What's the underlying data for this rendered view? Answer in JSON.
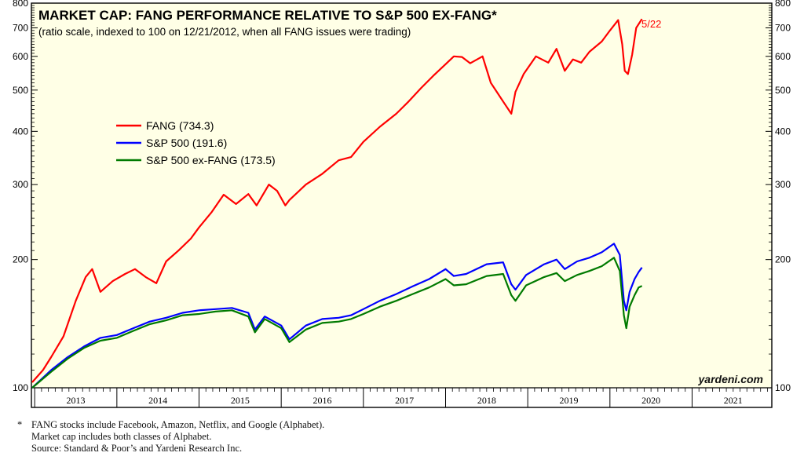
{
  "chart_data": {
    "type": "line",
    "title": "MARKET CAP: FANG PERFORMANCE RELATIVE TO S&P 500 EX-FANG*",
    "subtitle": "(ratio scale, indexed to 100 on 12/21/2012, when all FANG issues were trading)",
    "y_scale": "log",
    "ylim": [
      100,
      800
    ],
    "y_ticks": [
      100,
      200,
      300,
      400,
      500,
      600,
      700,
      800
    ],
    "xlim": [
      2012.96,
      2021.97
    ],
    "x_labels": [
      "2013",
      "2014",
      "2015",
      "2016",
      "2017",
      "2018",
      "2019",
      "2020",
      "2021"
    ],
    "grid": false,
    "legend_position": "center-left",
    "end_label": "5/22",
    "watermark": "yardeni.com",
    "series": [
      {
        "name": "FANG (734.3)",
        "color": "#ff0000",
        "x": [
          2012.97,
          2013.1,
          2013.2,
          2013.35,
          2013.5,
          2013.62,
          2013.7,
          2013.8,
          2013.95,
          2014.1,
          2014.22,
          2014.35,
          2014.48,
          2014.6,
          2014.75,
          2014.9,
          2015.0,
          2015.15,
          2015.3,
          2015.45,
          2015.6,
          2015.7,
          2015.85,
          2015.95,
          2016.05,
          2016.1,
          2016.3,
          2016.5,
          2016.7,
          2016.85,
          2017.0,
          2017.2,
          2017.4,
          2017.55,
          2017.7,
          2017.85,
          2018.0,
          2018.1,
          2018.2,
          2018.3,
          2018.45,
          2018.55,
          2018.7,
          2018.8,
          2018.85,
          2018.95,
          2019.1,
          2019.25,
          2019.35,
          2019.45,
          2019.55,
          2019.65,
          2019.75,
          2019.9,
          2020.0,
          2020.1,
          2020.15,
          2020.18,
          2020.22,
          2020.27,
          2020.32,
          2020.39
        ],
        "y": [
          103,
          110,
          118,
          132,
          160,
          182,
          190,
          168,
          178,
          185,
          190,
          182,
          176,
          198,
          210,
          224,
          238,
          258,
          284,
          270,
          285,
          268,
          300,
          290,
          268,
          276,
          300,
          318,
          342,
          348,
          378,
          410,
          440,
          470,
          505,
          540,
          575,
          600,
          598,
          578,
          600,
          520,
          470,
          440,
          495,
          545,
          600,
          580,
          625,
          555,
          590,
          580,
          615,
          650,
          690,
          730,
          640,
          555,
          545,
          605,
          700,
          734.3
        ]
      },
      {
        "name": "S&P 500 (191.6)",
        "color": "#0000ff",
        "x": [
          2012.97,
          2013.2,
          2013.4,
          2013.6,
          2013.8,
          2014.0,
          2014.2,
          2014.4,
          2014.6,
          2014.8,
          2015.0,
          2015.2,
          2015.4,
          2015.6,
          2015.68,
          2015.8,
          2016.0,
          2016.1,
          2016.3,
          2016.5,
          2016.7,
          2016.85,
          2017.0,
          2017.2,
          2017.4,
          2017.6,
          2017.8,
          2018.0,
          2018.1,
          2018.25,
          2018.5,
          2018.7,
          2018.8,
          2018.85,
          2018.98,
          2019.2,
          2019.35,
          2019.45,
          2019.6,
          2019.75,
          2019.9,
          2020.05,
          2020.12,
          2020.17,
          2020.2,
          2020.24,
          2020.3,
          2020.35,
          2020.39
        ],
        "y": [
          100,
          110,
          118,
          125,
          131,
          133,
          138,
          143,
          146,
          150,
          152,
          153,
          154,
          150,
          137,
          147,
          140,
          130,
          140,
          145,
          146,
          148,
          153,
          160,
          166,
          173,
          180,
          190,
          183,
          185,
          195,
          197,
          175,
          170,
          184,
          195,
          200,
          190,
          198,
          202,
          208,
          218,
          205,
          160,
          152,
          168,
          180,
          187,
          191.6
        ]
      },
      {
        "name": "S&P 500 ex-FANG (173.5)",
        "color": "#007a00",
        "x": [
          2012.97,
          2013.2,
          2013.4,
          2013.6,
          2013.8,
          2014.0,
          2014.2,
          2014.4,
          2014.6,
          2014.8,
          2015.0,
          2015.2,
          2015.4,
          2015.6,
          2015.68,
          2015.8,
          2016.0,
          2016.1,
          2016.3,
          2016.5,
          2016.7,
          2016.85,
          2017.0,
          2017.2,
          2017.4,
          2017.6,
          2017.8,
          2018.0,
          2018.1,
          2018.25,
          2018.5,
          2018.7,
          2018.8,
          2018.85,
          2018.98,
          2019.2,
          2019.35,
          2019.45,
          2019.6,
          2019.75,
          2019.9,
          2020.05,
          2020.12,
          2020.17,
          2020.2,
          2020.24,
          2020.3,
          2020.35,
          2020.39
        ],
        "y": [
          100,
          109,
          117,
          124,
          129,
          131,
          136,
          141,
          144,
          148,
          149,
          151,
          152,
          147,
          135,
          145,
          138,
          128,
          137,
          142,
          143,
          145,
          149,
          155,
          160,
          166,
          172,
          180,
          174,
          175,
          183,
          185,
          165,
          160,
          174,
          182,
          186,
          178,
          184,
          188,
          193,
          202,
          188,
          148,
          138,
          155,
          165,
          172,
          173.5
        ]
      }
    ]
  },
  "footnotes": {
    "marker": "*",
    "line1": "FANG stocks include Facebook, Amazon, Netflix, and Google (Alphabet).",
    "line2": "Market cap includes both classes of Alphabet.",
    "line3": "Source: Standard & Poor’s and Yardeni Research Inc."
  }
}
